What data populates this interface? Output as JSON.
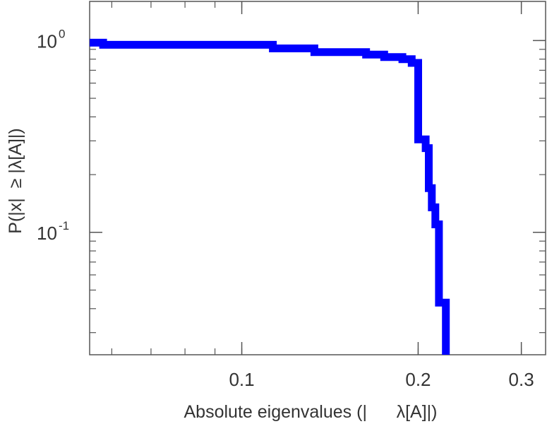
{
  "chart_data": {
    "type": "line",
    "title": "",
    "xlabel": "Absolute eigenvalues (|      λ[A]|)",
    "ylabel": "P(|x|  ≥ |λ[A]|)",
    "x_scale": "log",
    "y_scale": "log",
    "xlim": [
      0.055,
      0.33
    ],
    "ylim": [
      0.023,
      1.6
    ],
    "grid": false,
    "legend": "none",
    "line_color": "#0000ff",
    "x_ticks": [
      {
        "value": 0.1,
        "label": "0.1"
      },
      {
        "value": 0.2,
        "label": "0.2"
      },
      {
        "value": 0.3,
        "label": "0.3"
      }
    ],
    "y_ticks": [
      {
        "value": 1.0,
        "base": "10",
        "exp": "0"
      },
      {
        "value": 0.1,
        "base": "10",
        "exp": "-1"
      }
    ],
    "series": [
      {
        "name": "",
        "x": [
          0.055,
          0.058,
          0.073,
          0.087,
          0.108,
          0.113,
          0.133,
          0.148,
          0.163,
          0.175,
          0.188,
          0.195,
          0.2,
          0.206,
          0.2085,
          0.211,
          0.214,
          0.217,
          0.223
        ],
        "y": [
          0.975,
          0.95,
          0.95,
          0.95,
          0.95,
          0.91,
          0.87,
          0.87,
          0.845,
          0.82,
          0.8,
          0.765,
          0.305,
          0.275,
          0.17,
          0.135,
          0.11,
          0.043,
          0.023
        ]
      }
    ]
  }
}
